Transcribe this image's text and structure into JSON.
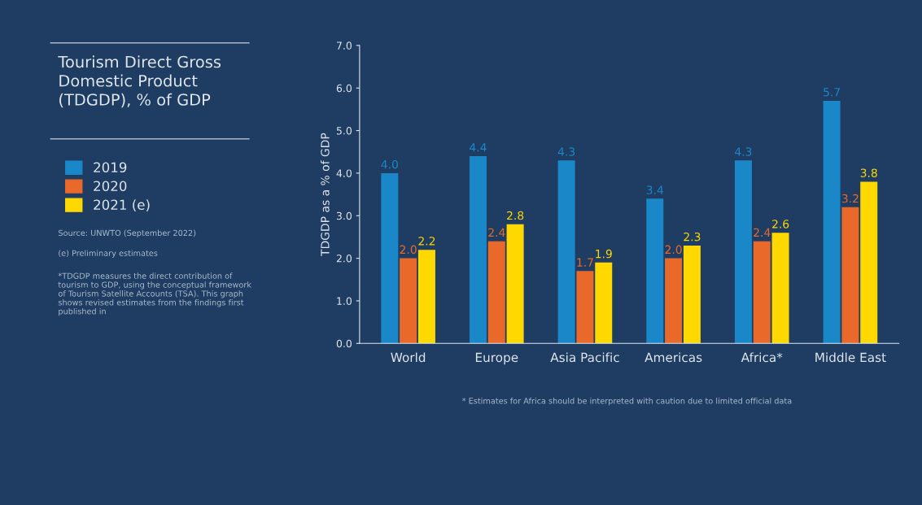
{
  "chart_data": {
    "type": "bar",
    "title": "Tourism Direct Gross\nDomestic Product\n(TDGDP), % of GDP",
    "ylabel": "TDGDP as a % of GDP",
    "categories": [
      "World",
      "Europe",
      "Asia Pacific",
      "Americas",
      "Africa*",
      "Middle East"
    ],
    "series": [
      {
        "name": "2019",
        "color": "#1a87c9",
        "values": [
          4.0,
          4.4,
          4.3,
          3.4,
          4.3,
          5.7
        ],
        "value_labels": [
          "4.0",
          "4.4",
          "4.3",
          "3.4",
          "4.3",
          "5.7"
        ]
      },
      {
        "name": "2020",
        "color": "#e8692a",
        "values": [
          2.0,
          2.4,
          1.7,
          2.0,
          2.4,
          3.2
        ],
        "value_labels": [
          "2.0",
          "2.4",
          "1.7",
          "2.0",
          "2.4",
          "3.2"
        ]
      },
      {
        "name": "2021 (e)",
        "color": "#ffd800",
        "values": [
          2.2,
          2.8,
          1.9,
          2.3,
          2.6,
          3.8
        ],
        "value_labels": [
          "2.2",
          "2.8",
          "1.9",
          "2.3",
          "2.6",
          "3.8"
        ]
      }
    ],
    "ylim": [
      0,
      7
    ],
    "yticks": [
      {
        "value": 0,
        "label": "0.0"
      },
      {
        "value": 1,
        "label": "1.0"
      },
      {
        "value": 2,
        "label": "2.0"
      },
      {
        "value": 3,
        "label": "3.0"
      },
      {
        "value": 4,
        "label": "4.0"
      },
      {
        "value": 5,
        "label": "5.0"
      },
      {
        "value": 6,
        "label": "6.0"
      },
      {
        "value": 7,
        "label": "7.0"
      }
    ],
    "legend": "left",
    "grid": false,
    "annotations": [
      "Source: UNWTO (September 2022)",
      "(e) Preliminary estimates",
      "*TDGDP measures the direct contribution of tourism to GDP, using the conceptual framework of Tourism Satellite Accounts (TSA). This graph shows revised estimates from the findings first published in",
      "* Estimates for Africa should be interpreted with caution due to limited official data"
    ]
  }
}
